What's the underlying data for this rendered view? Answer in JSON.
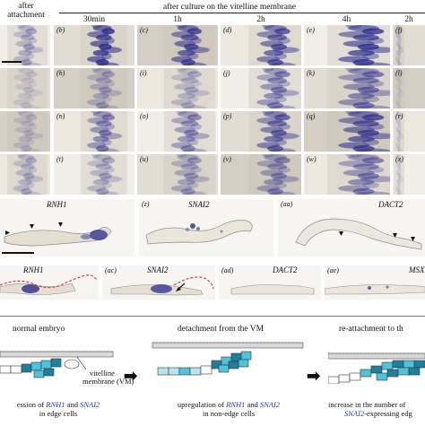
{
  "header": {
    "col0_line1": "after",
    "col0_line2": "attachment",
    "title": "after culture on the vitelline membrane",
    "times": [
      "30min",
      "1h",
      "2h",
      "4h",
      "2h"
    ]
  },
  "grid": {
    "rows": [
      [
        "",
        "(b)",
        "(c)",
        "(d)",
        "(e)",
        "(f)"
      ],
      [
        "",
        "(h)",
        "(i)",
        "(j)",
        "(k)",
        "(l)"
      ],
      [
        "",
        "(n)",
        "(o)",
        "(p)",
        "(q)",
        "(r)"
      ],
      [
        "",
        "(t)",
        "(u)",
        "(v)",
        "(w)",
        "(x)"
      ]
    ]
  },
  "sections": {
    "row_y": [
      {
        "gene": "RNH1",
        "label": ""
      },
      {
        "gene": "SNAI2",
        "label": "(z)"
      },
      {
        "gene": "DACT2",
        "label": "(aa)"
      }
    ],
    "row_ab": [
      {
        "gene": "RNH1",
        "label": ""
      },
      {
        "gene": "SNAI2",
        "label": "(ac)"
      },
      {
        "gene": "DACT2",
        "label": "(ad)"
      },
      {
        "gene": "MSX",
        "label": "(ae)"
      }
    ]
  },
  "schematic": {
    "stage1_title": "normal embryo",
    "stage2_title": "detachment from the VM",
    "stage3_title": "re-attachment to th",
    "vm_label_line1": "vitelline",
    "vm_label_line2": "membrane (VM)",
    "cap1_pre": "ession of ",
    "cap1_g1": "RNH1",
    "cap1_mid": " and ",
    "cap1_g2": "SNAI2",
    "cap1_line2": "in edge cells",
    "cap2_pre": "upregulation of ",
    "cap2_g1": "RNH1",
    "cap2_mid": " and ",
    "cap2_g2": "SNAI2",
    "cap2_line2": "in non-edge cells",
    "cap3_line1": "increase in the number of",
    "cap3_g": "SNAI2",
    "cap3_line2_rest": "-expressing edg"
  },
  "colors": {
    "stain": "#2a2a8c",
    "tissue": "#e6ded0",
    "cyan": "#4fc3dc",
    "dark_cyan": "#1e7f9e"
  }
}
